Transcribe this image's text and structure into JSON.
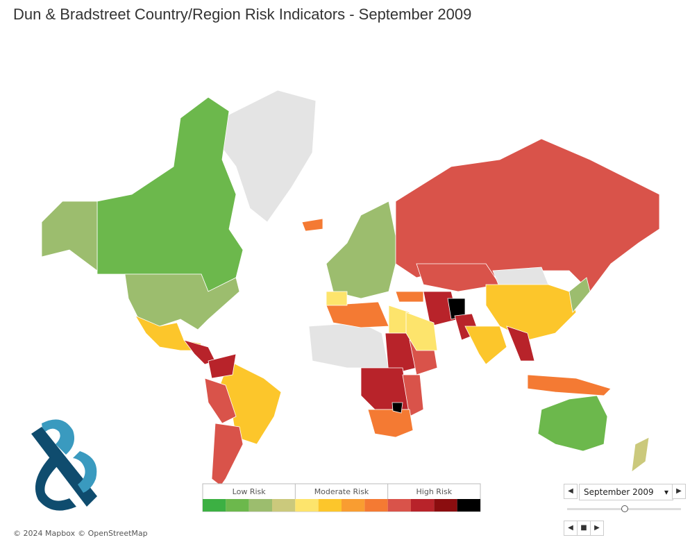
{
  "header": {
    "title": "Dun & Bradstreet Country/Region Risk Indicators - September 2009"
  },
  "legend": {
    "groups": [
      "Low Risk",
      "Moderate Risk",
      "High Risk"
    ],
    "colors": [
      "#3cb043",
      "#6cb84c",
      "#9cbd6e",
      "#cbc97c",
      "#fde46c",
      "#fcc62b",
      "#f99d31",
      "#f47a33",
      "#d9534a",
      "#b8232a",
      "#8b0d0f",
      "#000000"
    ]
  },
  "footer": {
    "attribution": [
      "© 2024 Mapbox",
      "© OpenStreetMap"
    ]
  },
  "controls": {
    "period": "September 2009"
  }
}
